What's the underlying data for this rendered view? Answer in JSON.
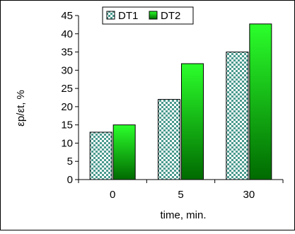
{
  "chart_data": {
    "type": "bar",
    "title": "",
    "xlabel": "time, min.",
    "ylabel": "εp/εt, %",
    "categories": [
      "0",
      "5",
      "30"
    ],
    "series": [
      {
        "name": "DT1",
        "values": [
          13,
          22,
          35
        ],
        "style": "checker",
        "colors": [
          "#4a9a8e",
          "#ffffff"
        ]
      },
      {
        "name": "DT2",
        "values": [
          15,
          31.8,
          42.7
        ],
        "style": "gradient",
        "colors": [
          "#2bff2b",
          "#006a00"
        ]
      }
    ],
    "ylim": [
      0,
      45
    ],
    "yticks": [
      "0",
      "5",
      "10",
      "15",
      "20",
      "25",
      "30",
      "35",
      "40",
      "45"
    ],
    "grid": false,
    "legend_position": "top"
  }
}
